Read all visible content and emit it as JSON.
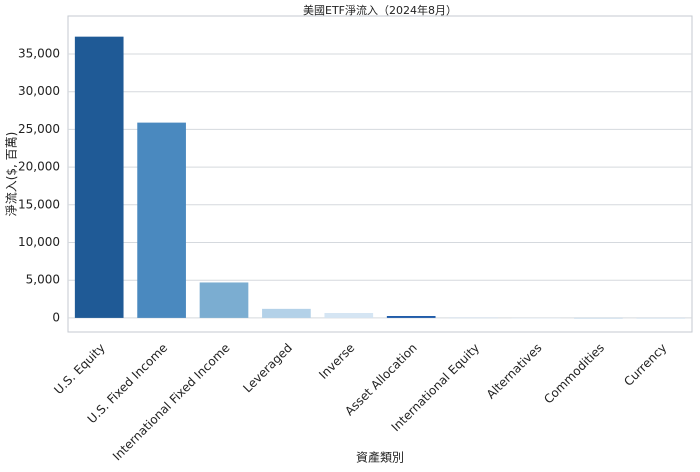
{
  "chart_data": {
    "type": "bar",
    "title": "美國ETF淨流入（2024年8月）",
    "x_label": "資產類別",
    "y_label": "淨流入($, 百萬)",
    "categories": [
      "U.S. Equity",
      "U.S. Fixed Income",
      "International Fixed Income",
      "Leveraged",
      "Inverse",
      "Asset Allocation",
      "International Equity",
      "Alternatives",
      "Commodities",
      "Currency"
    ],
    "values": [
      37300,
      25900,
      4700,
      1200,
      650,
      250,
      30,
      -20,
      -30,
      -10
    ],
    "colors": [
      "#1f5a96",
      "#4a89bf",
      "#7badd1",
      "#b3d1e8",
      "#d5e5f3",
      "#1d5aa8",
      "#c8dcee",
      "#dbe8f5",
      "#a9c9e3",
      "#c0d8ec"
    ],
    "ylim": [
      -1870,
      40040
    ],
    "yticks": [
      0,
      {
        "value": 5000,
        "label": "5,000"
      },
      {
        "value": 10000,
        "label": "10,000"
      },
      {
        "value": 15000,
        "label": "15,000"
      },
      {
        "value": 20000,
        "label": "20,000"
      },
      {
        "value": 25000,
        "label": "25,000"
      },
      {
        "value": 30000,
        "label": "30,000"
      },
      {
        "value": 35000,
        "label": "35,000"
      }
    ],
    "grid": true
  }
}
